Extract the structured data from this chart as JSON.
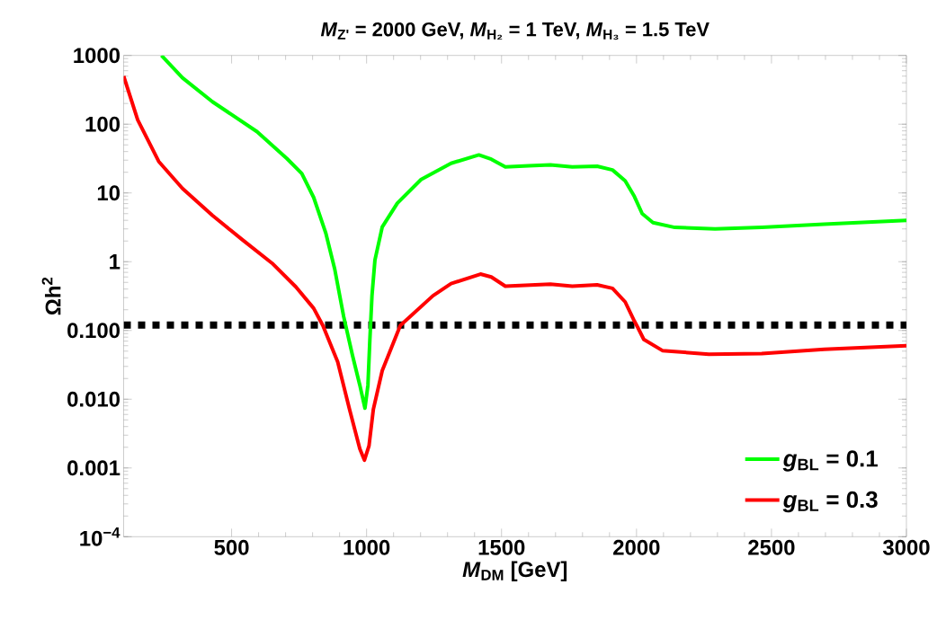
{
  "chart_data": {
    "type": "line",
    "title": "*M*$_{Z'}$ = 2000 GeV, *M*$_{H₂}$ = 1 TeV, *M*$_{H₃}$ = 1.5 TeV",
    "xlabel": "*M*$_{DM}$ [GeV]",
    "ylabel": "Ωh$^{2}$",
    "log": "y",
    "xlim": [
      100,
      3000
    ],
    "ylim": [
      0.0001,
      1000
    ],
    "xticks": [
      500,
      1000,
      1500,
      2000,
      2500,
      3000
    ],
    "yticks": [
      {
        "value": 0.0001,
        "label": "10$^{−4}$"
      },
      {
        "value": 0.001,
        "label": "0.001"
      },
      {
        "value": 0.01,
        "label": "0.010"
      },
      {
        "value": 0.1,
        "label": "0.100"
      },
      1,
      10,
      100,
      1000
    ],
    "legend": "bottom right",
    "line_style": "solid",
    "ref_lines": [
      {
        "axis": "y",
        "value": 0.12,
        "line_style": "dotted",
        "color": "#000000"
      }
    ],
    "series": [
      {
        "name": "*g*$_{BL}$ = 0.1",
        "color": "#00ff00",
        "x": [
          240,
          318,
          429,
          594,
          705,
          760,
          804,
          849,
          882,
          915,
          948,
          975,
          994,
          1005,
          1012,
          1020,
          1031,
          1058,
          1114,
          1202,
          1313,
          1416,
          1462,
          1514,
          1601,
          1681,
          1762,
          1854,
          1911,
          1958,
          1992,
          2021,
          2061,
          2142,
          2291,
          2464,
          2695,
          3000
        ],
        "values": [
          1000,
          472,
          212,
          78,
          31.6,
          19.2,
          8.6,
          2.6,
          0.78,
          0.16,
          0.043,
          0.016,
          0.0074,
          0.016,
          0.071,
          0.32,
          1.06,
          3.2,
          7.1,
          15.7,
          27,
          35.7,
          31,
          24,
          24.8,
          25.6,
          24,
          24.5,
          21.6,
          15,
          8.9,
          5.0,
          3.7,
          3.15,
          3.0,
          3.15,
          3.5,
          4.0
        ]
      },
      {
        "name": "*g*$_{BL}$ = 0.3",
        "color": "#ff0000",
        "x": [
          100,
          152,
          230,
          318,
          429,
          539,
          650,
          738,
          804,
          838,
          893,
          937,
          975,
          992,
          1009,
          1025,
          1058,
          1125,
          1246,
          1313,
          1422,
          1462,
          1514,
          1681,
          1762,
          1854,
          1911,
          1958,
          1992,
          2004,
          2027,
          2096,
          2268,
          2464,
          2695,
          3000
        ],
        "values": [
          500,
          116,
          28.7,
          11.6,
          4.7,
          2.1,
          0.95,
          0.43,
          0.21,
          0.118,
          0.035,
          0.0071,
          0.0019,
          0.0013,
          0.0021,
          0.0071,
          0.026,
          0.118,
          0.32,
          0.48,
          0.66,
          0.6,
          0.44,
          0.47,
          0.44,
          0.46,
          0.41,
          0.26,
          0.137,
          0.112,
          0.074,
          0.051,
          0.045,
          0.046,
          0.053,
          0.06
        ]
      }
    ]
  }
}
